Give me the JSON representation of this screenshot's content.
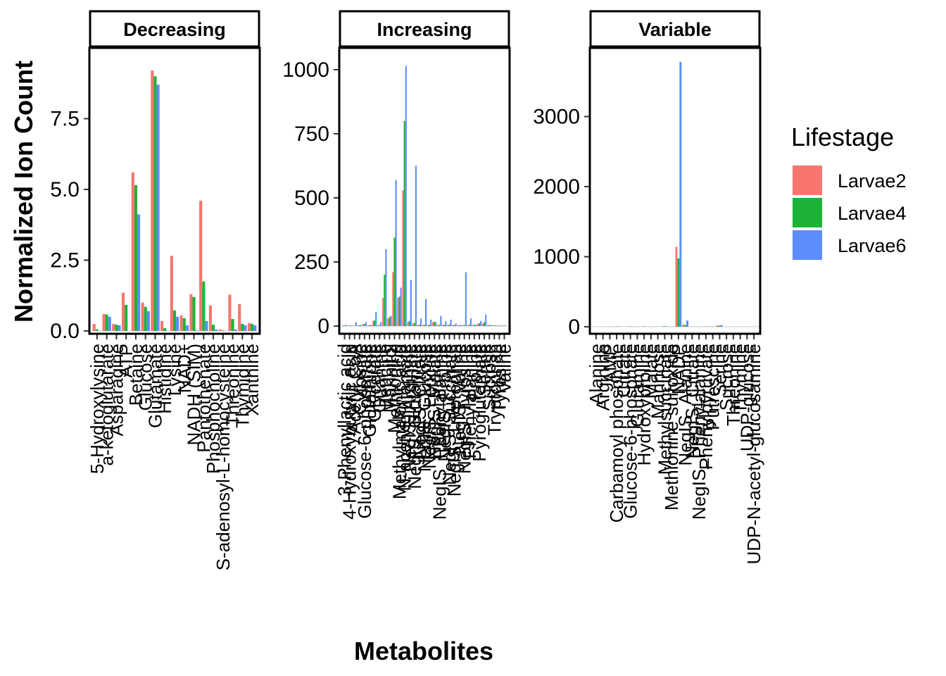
{
  "chart_data": {
    "type": "bar",
    "xlabel": "Metabolites",
    "ylabel": "Normalized Ion Count",
    "legend": {
      "title": "Lifestage",
      "placement": "right",
      "entries": [
        {
          "name": "Larvae2",
          "color": "#F8766D"
        },
        {
          "name": "Larvae4",
          "color": "#1DB338"
        },
        {
          "name": "Larvae6",
          "color": "#5B8DFC"
        }
      ]
    },
    "panels": [
      {
        "strip": "Decreasing",
        "ylim": [
          -0.1,
          10
        ],
        "yticks": [
          0,
          2.5,
          5,
          7.5
        ],
        "ytick_labels": [
          "0.0",
          "2.5",
          "5.0",
          "7.5"
        ],
        "categories": [
          "5-Hydroxylysine",
          "a-ketoglutarate",
          "Asparagine",
          "ATP",
          "Betaine",
          "Glucose",
          "Glutamate",
          "Histidine",
          "Lysine",
          "NAD+",
          "NADH (SIM)",
          "Pantothenate",
          "Phosphocholine",
          "S-adenosyl-L-homocysteine",
          "Threonine",
          "Thymidine",
          "Xanthine"
        ],
        "series": [
          {
            "name": "Larvae2",
            "values": [
              0.25,
              0.6,
              0.25,
              1.35,
              5.6,
              1.0,
              9.2,
              0.35,
              2.65,
              0.55,
              1.3,
              4.6,
              0.9,
              0.05,
              1.28,
              0.95,
              0.28
            ]
          },
          {
            "name": "Larvae4",
            "values": [
              0.05,
              0.58,
              0.22,
              0.92,
              5.15,
              0.85,
              9.0,
              0.1,
              0.72,
              0.45,
              1.2,
              1.75,
              0.22,
              0.02,
              0.42,
              0.25,
              0.25
            ]
          },
          {
            "name": "Larvae6",
            "values": [
              0.0,
              0.5,
              0.2,
              0.0,
              4.12,
              0.7,
              8.7,
              0.0,
              0.5,
              0.2,
              0.02,
              0.35,
              0.05,
              0.0,
              0.05,
              0.2,
              0.2
            ]
          }
        ]
      },
      {
        "strip": "Increasing",
        "ylim": [
          -30,
          1085
        ],
        "yticks": [
          0,
          250,
          500,
          750,
          1000
        ],
        "ytick_labels": [
          "0",
          "250",
          "500",
          "750",
          "1000"
        ],
        "categories": [
          "3-Phenyllactic acid",
          "4-Hydroxybutyric acid",
          "Acetyl CoA",
          "Cytosine",
          "Glucose-6-phosphate",
          "Glutathione",
          "Glycerate",
          "Guanine",
          "Leucine",
          "Mannitol",
          "Methionine",
          "Methylmalonic acid",
          "N-acetylglutamate",
          "NegIS_Arginine",
          "NegIS_Glutamate",
          "NegIS_Citrate",
          "NegIS_Glucose",
          "NegIS_Leucine",
          "NegIS_Malate",
          "NegIS_Phenylalanine",
          "NegIS_Proline",
          "NegIS_Succinate",
          "NegIS_Tryptophan",
          "NegIS_Valine",
          "NegIS_Tyrosine",
          "Phenylalanine",
          "Proline",
          "Pyroglutamate",
          "Serine",
          "Sucrose",
          "Tryptophan",
          "Tyrosine",
          "Valine"
        ],
        "series": [
          {
            "name": "Larvae2",
            "values": [
              3,
              2,
              2,
              3,
              8,
              3,
              20,
              4,
              110,
              30,
              210,
              110,
              530,
              15,
              10,
              5,
              5,
              5,
              15,
              5,
              5,
              5,
              4,
              3,
              4,
              5,
              5,
              10,
              10,
              4,
              3,
              2,
              2
            ]
          },
          {
            "name": "Larvae4",
            "values": [
              2,
              2,
              2,
              3,
              8,
              3,
              22,
              4,
              200,
              35,
              345,
              115,
              800,
              20,
              12,
              5,
              5,
              5,
              18,
              5,
              5,
              5,
              4,
              3,
              4,
              5,
              5,
              10,
              15,
              4,
              3,
              2,
              2
            ]
          },
          {
            "name": "Larvae6",
            "values": [
              5,
              3,
              15,
              5,
              15,
              5,
              55,
              15,
              300,
              40,
              570,
              150,
              1015,
              180,
              625,
              30,
              105,
              25,
              15,
              40,
              20,
              25,
              10,
              5,
              210,
              30,
              5,
              20,
              45,
              5,
              3,
              2,
              2
            ]
          }
        ]
      },
      {
        "strip": "Variable",
        "ylim": [
          -100,
          3980
        ],
        "yticks": [
          0,
          1000,
          2000,
          3000
        ],
        "ytick_labels": [
          "0",
          "1000",
          "2000",
          "3000"
        ],
        "categories": [
          "Alanine",
          "Arginine",
          "AMP",
          "Carbamoyl phosphate",
          "Citrate",
          "Glucose-6-phosphate",
          "Glutamine",
          "Hydroxyproline",
          "Malate",
          "Mannose",
          "Methylsuccinate",
          "Methionine sulfoxide",
          "NADP",
          "NegIS_Alanine",
          "NegIS_Citrate",
          "NegIS_Phenylalanine",
          "Phenylpyruvate",
          "Putrescine",
          "Serine",
          "Sucrose",
          "Threonine",
          "Thymine",
          "UDP-glucose",
          "UDP-N-acetyl-glucosamine"
        ],
        "series": [
          {
            "name": "Larvae2",
            "values": [
              2,
              2,
              2,
              5,
              3,
              5,
              3,
              5,
              3,
              2,
              8,
              3,
              1140,
              30,
              3,
              3,
              5,
              5,
              20,
              2,
              2,
              2,
              2,
              2
            ]
          },
          {
            "name": "Larvae4",
            "values": [
              2,
              2,
              2,
              5,
              3,
              5,
              3,
              5,
              3,
              2,
              8,
              3,
              975,
              25,
              3,
              3,
              5,
              5,
              15,
              2,
              2,
              2,
              2,
              2
            ]
          },
          {
            "name": "Larvae6",
            "values": [
              2,
              2,
              2,
              5,
              3,
              5,
              3,
              5,
              3,
              2,
              8,
              3,
              3780,
              90,
              3,
              3,
              5,
              5,
              25,
              2,
              2,
              2,
              2,
              2
            ]
          }
        ]
      }
    ]
  }
}
